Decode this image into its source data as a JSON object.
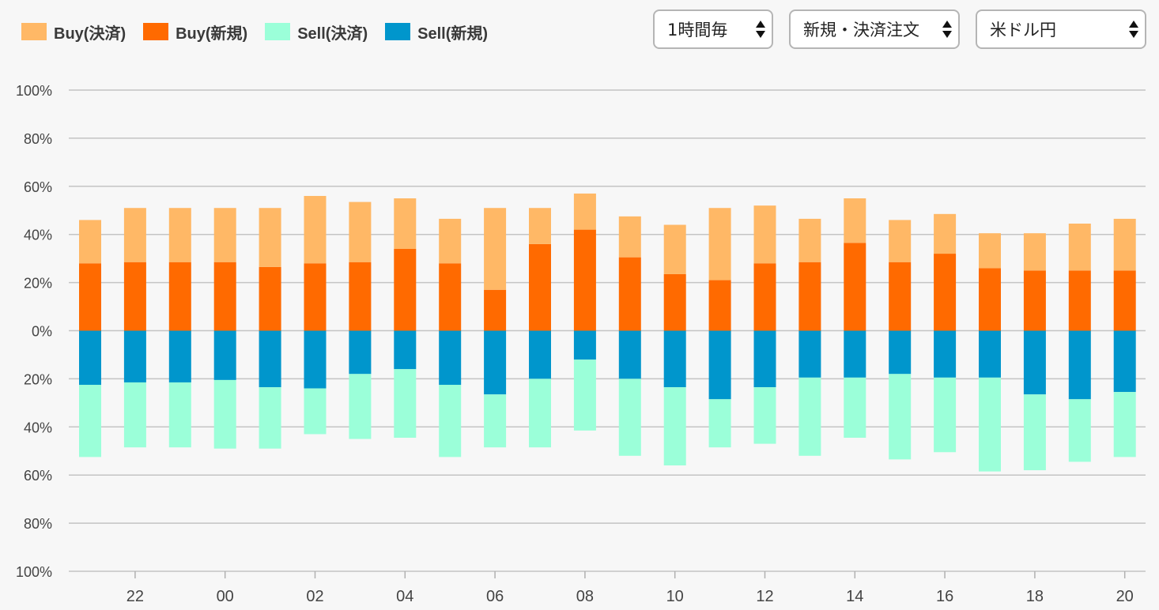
{
  "legend": [
    {
      "label": "Buy(決済)",
      "color": "#ffb866"
    },
    {
      "label": "Buy(新規)",
      "color": "#ff6a00"
    },
    {
      "label": "Sell(決済)",
      "color": "#9bffd9"
    },
    {
      "label": "Sell(新規)",
      "color": "#0096cc"
    }
  ],
  "controls": {
    "interval": "1時間毎",
    "order_type": "新規・決済注文",
    "pair": "米ドル円"
  },
  "chart_data": {
    "type": "bar",
    "stacked": true,
    "ylim": [
      -100,
      100
    ],
    "y_ticks": [
      100,
      80,
      60,
      40,
      20,
      0,
      -20,
      -40,
      -60,
      -80,
      -100
    ],
    "y_tick_labels": [
      "100%",
      "80%",
      "60%",
      "40%",
      "20%",
      "0%",
      "20%",
      "40%",
      "60%",
      "80%",
      "100%"
    ],
    "x_tick_labels": [
      {
        "index": 1,
        "label": "22"
      },
      {
        "index": 3,
        "label": "00"
      },
      {
        "index": 5,
        "label": "02"
      },
      {
        "index": 7,
        "label": "04"
      },
      {
        "index": 9,
        "label": "06"
      },
      {
        "index": 11,
        "label": "08"
      },
      {
        "index": 13,
        "label": "10"
      },
      {
        "index": 15,
        "label": "12"
      },
      {
        "index": 17,
        "label": "14"
      },
      {
        "index": 19,
        "label": "16"
      },
      {
        "index": 21,
        "label": "18"
      },
      {
        "index": 23,
        "label": "20"
      }
    ],
    "grid": true,
    "legend_position": "top-left",
    "series": [
      {
        "name": "Buy(新規)",
        "color": "#ff6a00",
        "values": [
          28,
          28.5,
          28.5,
          28.5,
          26.5,
          28,
          28.5,
          34,
          28,
          17,
          36,
          42,
          30.5,
          23.5,
          21,
          28,
          28.5,
          36.5,
          28.5,
          32,
          26,
          25,
          25,
          25
        ]
      },
      {
        "name": "Buy(決済)",
        "color": "#ffb866",
        "values": [
          18,
          22.5,
          22.5,
          22.5,
          24.5,
          28,
          25,
          21,
          18.5,
          34,
          15,
          15,
          17,
          20.5,
          30,
          24,
          18,
          18.5,
          17.5,
          16.5,
          14.5,
          15.5,
          19.5,
          21.5
        ]
      },
      {
        "name": "Sell(新規)",
        "color": "#0096cc",
        "values": [
          -22.5,
          -21.5,
          -21.5,
          -20.5,
          -23.5,
          -24,
          -18,
          -16,
          -22.5,
          -26.5,
          -20,
          -12,
          -20,
          -23.5,
          -28.5,
          -23.5,
          -19.5,
          -19.5,
          -18,
          -19.5,
          -19.5,
          -26.5,
          -28.5,
          -25.5
        ]
      },
      {
        "name": "Sell(決済)",
        "color": "#9bffd9",
        "values": [
          -30,
          -27,
          -27,
          -28.5,
          -25.5,
          -19,
          -27,
          -28.5,
          -30,
          -22,
          -28.5,
          -29.5,
          -32,
          -32.5,
          -20,
          -23.5,
          -32.5,
          -25,
          -35.5,
          -31,
          -39,
          -31.5,
          -26,
          -27
        ]
      }
    ]
  }
}
